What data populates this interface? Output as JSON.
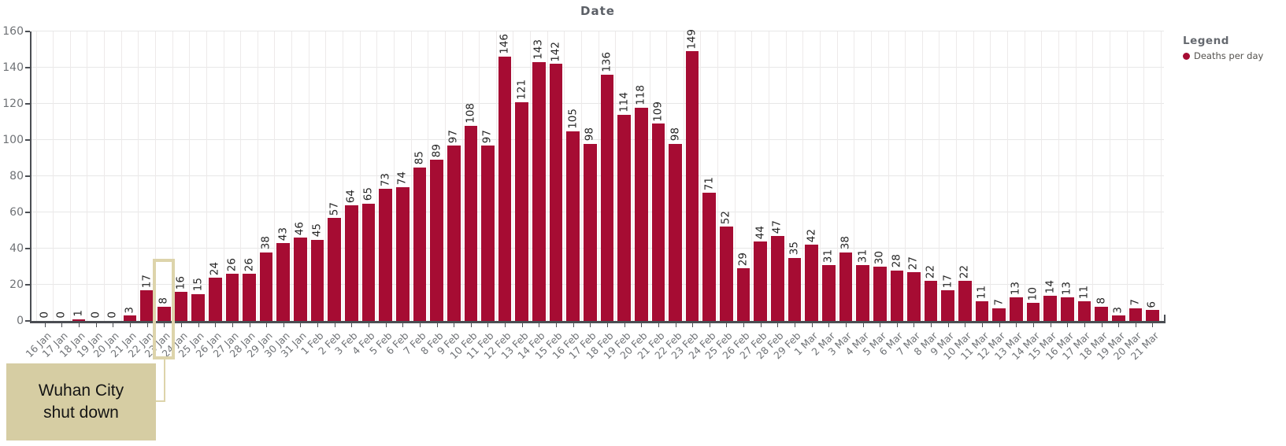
{
  "title": "Date",
  "legend": {
    "header": "Legend",
    "items": [
      {
        "label": "Deaths per day",
        "color": "#a60c33"
      }
    ]
  },
  "annotation": {
    "line1": "Wuhan City",
    "line2": "shut down",
    "highlighted_category": "23 Jan"
  },
  "colors": {
    "bar": "#a60c33",
    "annotation_fill": "#d6cda3",
    "annotation_border": "#ddd4ab",
    "axis_line": "#4b4e53",
    "axis_text": "#6f7276",
    "value_text": "#242424",
    "title_text": "#5b5f66",
    "grid": "#e7e7e7"
  },
  "chart_data": {
    "type": "bar",
    "title": "Date",
    "xlabel": "Date",
    "ylabel": "",
    "ylim": [
      0,
      160
    ],
    "yticks": [
      0,
      20,
      40,
      60,
      80,
      100,
      120,
      140,
      160
    ],
    "grid": true,
    "legend_position": "top-right",
    "value_labels": "rotated 90deg above each bar",
    "x_tick_label_rotation": -45,
    "annotation": "Wuhan City shut down — highlight box around 23 Jan bar",
    "categories": [
      "16 Jan",
      "17 Jan",
      "18 Jan",
      "19 Jan",
      "20 Jan",
      "21 Jan",
      "22 Jan",
      "23 Jan",
      "24 Jan",
      "25 Jan",
      "26 Jan",
      "27 Jan",
      "28 Jan",
      "29 Jan",
      "30 Jan",
      "31 Jan",
      "1 Feb",
      "2 Feb",
      "3 Feb",
      "4 Feb",
      "5 Feb",
      "6 Feb",
      "7 Feb",
      "8 Feb",
      "9 Feb",
      "10 Feb",
      "11 Feb",
      "12 Feb",
      "13 Feb",
      "14 Feb",
      "15 Feb",
      "16 Feb",
      "17 Feb",
      "18 Feb",
      "19 Feb",
      "20 Feb",
      "21 Feb",
      "22 Feb",
      "23 Feb",
      "24 Feb",
      "25 Feb",
      "26 Feb",
      "27 Feb",
      "28 Feb",
      "29 Feb",
      "1 Mar",
      "2 Mar",
      "3 Mar",
      "4 Mar",
      "5 Mar",
      "6 Mar",
      "7 Mar",
      "8 Mar",
      "9 Mar",
      "10 Mar",
      "11 Mar",
      "12 Mar",
      "13 Mar",
      "14 Mar",
      "15 Mar",
      "16 Mar",
      "17 Mar",
      "18 Mar",
      "19 Mar",
      "20 Mar",
      "21 Mar"
    ],
    "series": [
      {
        "name": "Deaths per day",
        "values": [
          0,
          0,
          1,
          0,
          0,
          3,
          17,
          8,
          16,
          15,
          24,
          26,
          26,
          38,
          43,
          46,
          45,
          57,
          64,
          65,
          73,
          74,
          85,
          89,
          97,
          108,
          97,
          146,
          121,
          143,
          142,
          105,
          98,
          136,
          114,
          118,
          109,
          98,
          149,
          71,
          52,
          29,
          44,
          47,
          35,
          42,
          31,
          38,
          31,
          30,
          28,
          27,
          22,
          17,
          22,
          11,
          7,
          13,
          10,
          14,
          13,
          11,
          8,
          3,
          7,
          6
        ]
      }
    ]
  }
}
